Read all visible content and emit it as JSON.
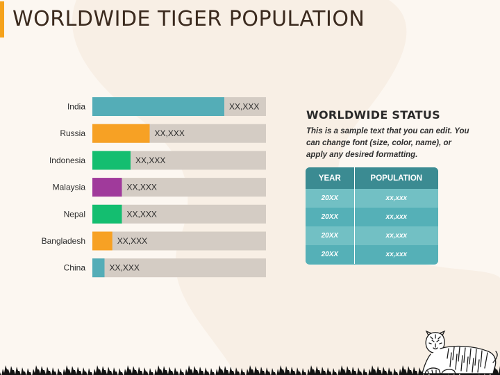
{
  "page": {
    "title": "WORLDWIDE TIGER POPULATION"
  },
  "chart_data": {
    "type": "bar",
    "orientation": "horizontal",
    "categories": [
      "India",
      "Russia",
      "Indonesia",
      "Malaysia",
      "Nepal",
      "Bangladesh",
      "China"
    ],
    "values": [
      0.76,
      0.33,
      0.22,
      0.17,
      0.17,
      0.115,
      0.07
    ],
    "data_labels": [
      "XX,XXX",
      "XX,XXX",
      "XX,XXX",
      "XX,XXX",
      "XX,XXX",
      "XX,XXX",
      "XX,XXX"
    ],
    "colors": [
      "#54adb7",
      "#f7a124",
      "#14be70",
      "#a03a9b",
      "#14be70",
      "#f7a124",
      "#54adb7"
    ],
    "track_color": "#d4ccc4",
    "xlim": [
      0,
      1
    ],
    "grid": false,
    "legend": "none"
  },
  "status": {
    "title": "WORLDWIDE STATUS",
    "description": "This is a sample text that you can edit. You can change font (size, color, name), or apply any desired formatting.",
    "headers": {
      "year": "YEAR",
      "population": "POPULATION"
    },
    "rows": [
      {
        "year": "20XX",
        "population": "xx,xxx"
      },
      {
        "year": "20XX",
        "population": "xx,xxx"
      },
      {
        "year": "20XX",
        "population": "xx,xxx"
      },
      {
        "year": "20XX",
        "population": "xx,xxx"
      }
    ]
  },
  "decor": {
    "icons": [
      "tiger-icon",
      "grass-silhouette"
    ]
  }
}
